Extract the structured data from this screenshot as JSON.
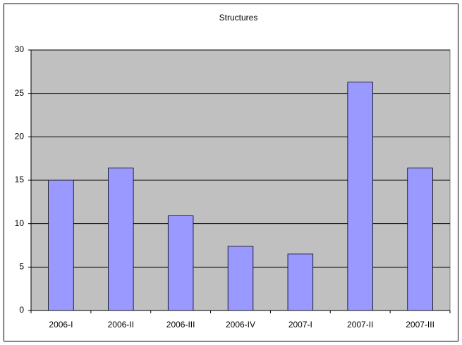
{
  "chart_data": {
    "type": "bar",
    "title": "Structures",
    "categories": [
      "2006-I",
      "2006-II",
      "2006-III",
      "2006-IV",
      "2007-I",
      "2007-II",
      "2007-III"
    ],
    "values": [
      15.0,
      16.4,
      10.9,
      7.4,
      6.5,
      26.3,
      16.4
    ],
    "color": "#9999ff",
    "ylim": [
      0,
      30
    ],
    "yticks": [
      0,
      5,
      10,
      15,
      20,
      25,
      30
    ],
    "grid": true
  }
}
